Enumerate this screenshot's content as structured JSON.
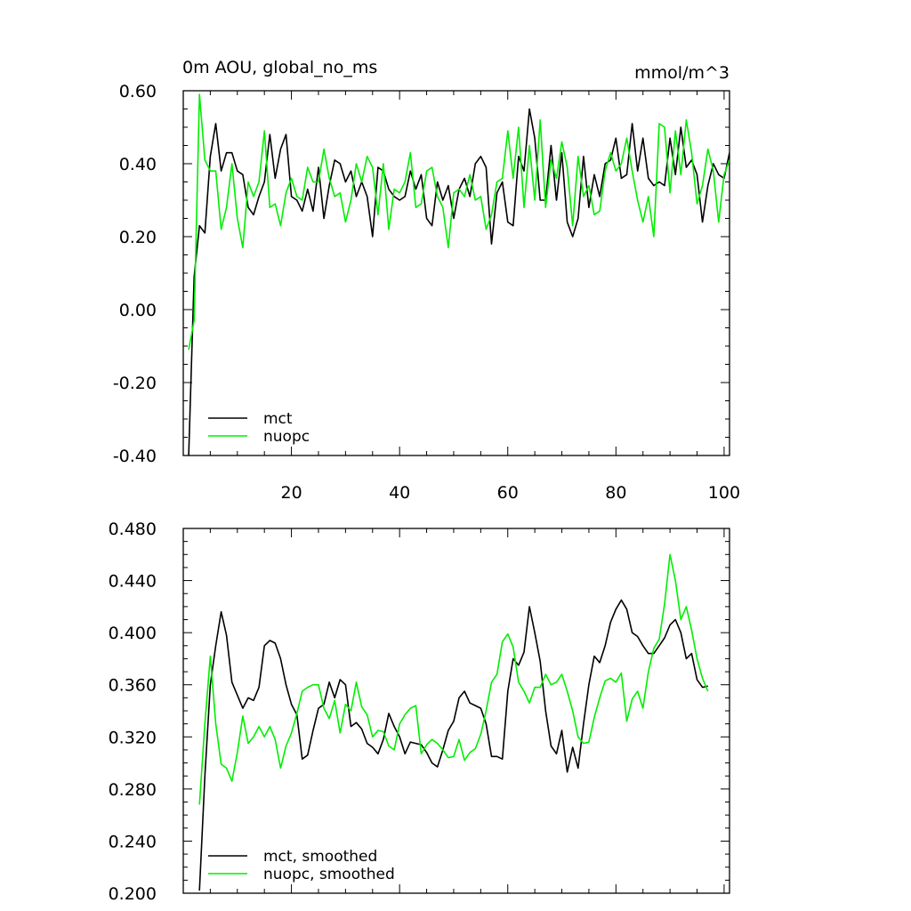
{
  "chart_data": [
    {
      "type": "line",
      "title": "0m AOU, global_no_ms",
      "units": "mmol/m^3",
      "xlabel": "",
      "ylabel": "",
      "xlim": [
        0,
        101
      ],
      "ylim": [
        -0.4,
        0.6
      ],
      "x_ticks": [
        20,
        40,
        60,
        80,
        100
      ],
      "y_ticks": [
        0.6,
        0.4,
        0.2,
        0.0,
        -0.2,
        -0.4
      ],
      "y_tick_labels": [
        "0.60",
        "0.40",
        "0.20",
        "0.00",
        "-0.20",
        "-0.40"
      ],
      "legend_position": "bottom-left",
      "series": [
        {
          "name": "mct",
          "color": "#000000",
          "values": [
            -0.4,
            0.09,
            0.23,
            0.21,
            0.42,
            0.51,
            0.38,
            0.43,
            0.43,
            0.38,
            0.37,
            0.28,
            0.26,
            0.31,
            0.35,
            0.48,
            0.36,
            0.44,
            0.48,
            0.31,
            0.3,
            0.27,
            0.33,
            0.27,
            0.39,
            0.25,
            0.34,
            0.41,
            0.4,
            0.35,
            0.38,
            0.31,
            0.35,
            0.31,
            0.2,
            0.39,
            0.38,
            0.33,
            0.31,
            0.3,
            0.31,
            0.38,
            0.33,
            0.37,
            0.25,
            0.23,
            0.35,
            0.3,
            0.34,
            0.25,
            0.33,
            0.36,
            0.31,
            0.4,
            0.42,
            0.39,
            0.18,
            0.32,
            0.35,
            0.24,
            0.23,
            0.42,
            0.38,
            0.55,
            0.47,
            0.3,
            0.3,
            0.45,
            0.3,
            0.43,
            0.24,
            0.2,
            0.25,
            0.42,
            0.28,
            0.37,
            0.31,
            0.4,
            0.41,
            0.47,
            0.36,
            0.37,
            0.51,
            0.38,
            0.47,
            0.36,
            0.34,
            0.35,
            0.34,
            0.47,
            0.37,
            0.5,
            0.39,
            0.41,
            0.37,
            0.24,
            0.34,
            0.4,
            0.37,
            0.36,
            0.43
          ]
        },
        {
          "name": "nuopc",
          "color": "#00ee00",
          "values": [
            -0.11,
            -0.03,
            0.59,
            0.41,
            0.38,
            0.38,
            0.22,
            0.28,
            0.4,
            0.25,
            0.17,
            0.35,
            0.31,
            0.35,
            0.49,
            0.28,
            0.29,
            0.23,
            0.32,
            0.36,
            0.31,
            0.3,
            0.39,
            0.35,
            0.35,
            0.44,
            0.36,
            0.31,
            0.32,
            0.24,
            0.3,
            0.4,
            0.35,
            0.42,
            0.39,
            0.26,
            0.4,
            0.22,
            0.33,
            0.32,
            0.35,
            0.43,
            0.28,
            0.29,
            0.38,
            0.39,
            0.31,
            0.28,
            0.17,
            0.32,
            0.33,
            0.31,
            0.37,
            0.3,
            0.31,
            0.22,
            0.26,
            0.35,
            0.36,
            0.49,
            0.36,
            0.5,
            0.28,
            0.45,
            0.3,
            0.52,
            0.28,
            0.41,
            0.36,
            0.46,
            0.39,
            0.23,
            0.42,
            0.31,
            0.34,
            0.26,
            0.27,
            0.38,
            0.43,
            0.38,
            0.4,
            0.47,
            0.38,
            0.3,
            0.24,
            0.31,
            0.2,
            0.51,
            0.5,
            0.32,
            0.49,
            0.37,
            0.52,
            0.43,
            0.29,
            0.34,
            0.44,
            0.38,
            0.24,
            0.37,
            0.41
          ]
        }
      ]
    },
    {
      "type": "line",
      "title": "",
      "xlabel": "",
      "ylabel": "",
      "xlim": [
        0,
        101
      ],
      "ylim": [
        0.2,
        0.48
      ],
      "x_ticks": [
        20,
        40,
        60,
        80,
        100
      ],
      "y_ticks": [
        0.48,
        0.44,
        0.4,
        0.36,
        0.32,
        0.28,
        0.24,
        0.2
      ],
      "y_tick_labels": [
        "0.480",
        "0.440",
        "0.400",
        "0.360",
        "0.320",
        "0.280",
        "0.240",
        "0.200"
      ],
      "legend_position": "bottom-left",
      "series": [
        {
          "name": "mct, smoothed",
          "color": "#000000",
          "x_start": 3,
          "values": [
            0.202,
            0.29,
            0.36,
            0.39,
            0.416,
            0.398,
            0.362,
            0.352,
            0.342,
            0.35,
            0.348,
            0.358,
            0.39,
            0.394,
            0.392,
            0.38,
            0.36,
            0.345,
            0.337,
            0.303,
            0.306,
            0.325,
            0.342,
            0.345,
            0.362,
            0.35,
            0.364,
            0.36,
            0.328,
            0.331,
            0.326,
            0.315,
            0.312,
            0.307,
            0.318,
            0.338,
            0.328,
            0.32,
            0.307,
            0.316,
            0.315,
            0.314,
            0.308,
            0.3,
            0.297,
            0.31,
            0.325,
            0.332,
            0.35,
            0.355,
            0.346,
            0.344,
            0.342,
            0.33,
            0.305,
            0.305,
            0.303,
            0.355,
            0.38,
            0.375,
            0.385,
            0.42,
            0.4,
            0.378,
            0.34,
            0.313,
            0.307,
            0.325,
            0.293,
            0.312,
            0.296,
            0.33,
            0.36,
            0.382,
            0.377,
            0.39,
            0.408,
            0.418,
            0.425,
            0.418,
            0.4,
            0.397,
            0.39,
            0.384,
            0.384,
            0.39,
            0.396,
            0.406,
            0.41,
            0.4,
            0.38,
            0.384,
            0.364,
            0.358,
            0.359
          ]
        },
        {
          "name": "nuopc, smoothed",
          "color": "#00ee00",
          "x_start": 3,
          "values": [
            0.268,
            0.33,
            0.382,
            0.33,
            0.299,
            0.296,
            0.286,
            0.308,
            0.336,
            0.315,
            0.32,
            0.328,
            0.32,
            0.328,
            0.318,
            0.296,
            0.313,
            0.323,
            0.338,
            0.355,
            0.358,
            0.36,
            0.36,
            0.342,
            0.334,
            0.348,
            0.323,
            0.345,
            0.34,
            0.362,
            0.343,
            0.337,
            0.32,
            0.325,
            0.324,
            0.313,
            0.31,
            0.33,
            0.337,
            0.342,
            0.344,
            0.307,
            0.314,
            0.318,
            0.315,
            0.31,
            0.304,
            0.305,
            0.318,
            0.302,
            0.308,
            0.311,
            0.322,
            0.34,
            0.362,
            0.368,
            0.393,
            0.399,
            0.389,
            0.362,
            0.355,
            0.346,
            0.358,
            0.358,
            0.368,
            0.36,
            0.362,
            0.368,
            0.355,
            0.34,
            0.32,
            0.315,
            0.316,
            0.335,
            0.35,
            0.363,
            0.365,
            0.362,
            0.369,
            0.332,
            0.349,
            0.355,
            0.342,
            0.37,
            0.388,
            0.395,
            0.422,
            0.46,
            0.44,
            0.41,
            0.42,
            0.402,
            0.38,
            0.365,
            0.355
          ]
        }
      ]
    }
  ]
}
